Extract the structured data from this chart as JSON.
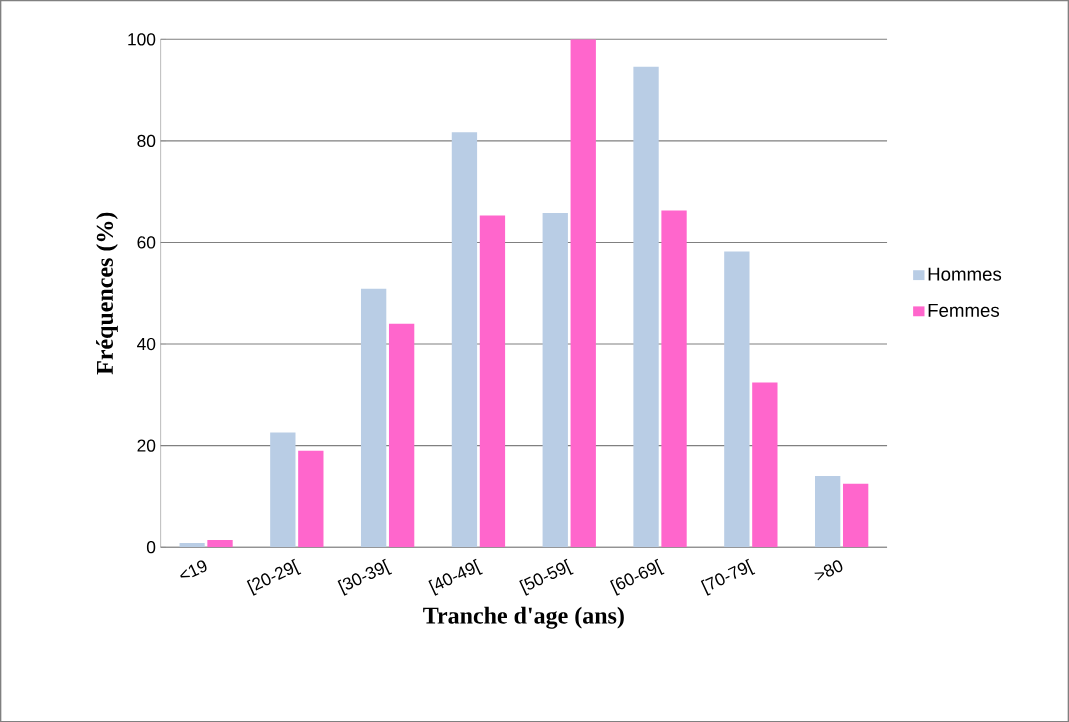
{
  "chart_data": {
    "type": "bar",
    "xlabel": "Tranche d'age (ans)",
    "ylabel": "Fréquences (%)",
    "categories": [
      "<19",
      "[20-29[",
      "[30-39[",
      "[40-49[",
      "[50-59[",
      "[60-69[",
      "[70-79[",
      ">80"
    ],
    "series": [
      {
        "name": "Hommes",
        "color": "#b9cde5",
        "values": [
          0.8,
          22.6,
          50.9,
          81.7,
          65.8,
          94.6,
          58.2,
          14.0
        ]
      },
      {
        "name": "Femmes",
        "color": "#ff66cc",
        "values": [
          1.4,
          19.0,
          44.0,
          65.3,
          100,
          66.3,
          32.4,
          12.5
        ]
      }
    ],
    "ylim": [
      0,
      100
    ],
    "yticks": [
      0,
      20,
      40,
      60,
      80,
      100
    ],
    "grid": "y",
    "legend": "right"
  }
}
